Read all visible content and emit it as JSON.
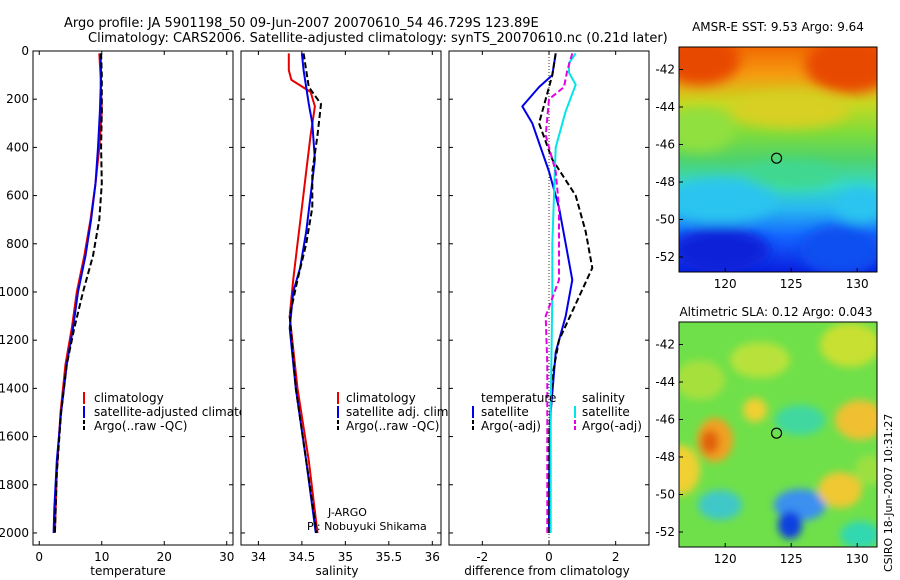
{
  "figure": {
    "title_line1": "Argo profile: JA 5901198_50 09-Jun-2007 20070610_54 46.729S 123.89E",
    "title_line2": "Climatology: CARS2006. Satellite-adjusted climatology: synTS_20070610.nc (0.21d later)",
    "credit": "CSIRO 18-Jun-2007 10:31:27",
    "colors": {
      "red": "#e60000",
      "blue": "#0000e6",
      "black": "#000000",
      "cyan": "#00e6e6",
      "magenta": "#e600e6"
    }
  },
  "chart_data": [
    {
      "id": "temperature",
      "type": "line",
      "xlabel": "temperature",
      "ylabel": "",
      "xlim": [
        -1,
        31
      ],
      "ylim": [
        2050,
        0
      ],
      "x_ticks": [
        0,
        10,
        20,
        30
      ],
      "x_tick_labels": [
        "0",
        "10",
        "20",
        "30"
      ],
      "y_ticks": [
        0,
        200,
        400,
        600,
        800,
        1000,
        1200,
        1400,
        1600,
        1800,
        2000
      ],
      "y_tick_labels": [
        "0",
        "200",
        "400",
        "600",
        "800",
        "1000",
        "1200",
        "1400",
        "1600",
        "1800",
        "2000"
      ],
      "series": [
        {
          "name": "climatology",
          "color": "red",
          "dashed": false,
          "x": [
            9.6,
            9.8,
            10.0,
            9.6,
            9.0,
            8.2,
            7.2,
            6.0,
            5.2,
            4.2,
            3.4,
            2.8,
            2.5
          ],
          "y": [
            10,
            100,
            250,
            400,
            550,
            700,
            850,
            1000,
            1150,
            1300,
            1500,
            1750,
            2000
          ]
        },
        {
          "name": "satellite-adjusted climatology",
          "color": "blue",
          "dashed": false,
          "x": [
            9.8,
            9.9,
            9.7,
            9.4,
            9.0,
            8.3,
            7.4,
            6.2,
            5.4,
            4.4,
            3.5,
            2.8,
            2.4,
            2.3
          ],
          "y": [
            10,
            100,
            250,
            400,
            550,
            700,
            850,
            1000,
            1150,
            1300,
            1500,
            1700,
            1900,
            2000
          ]
        },
        {
          "name": "Argo(..raw -QC)",
          "color": "black",
          "dashed": true,
          "x": [
            9.9,
            10.0,
            10.0,
            9.9,
            10.0,
            9.6,
            8.6,
            7.0,
            5.6,
            4.4,
            3.5,
            2.8,
            2.5
          ],
          "y": [
            10,
            100,
            250,
            400,
            550,
            700,
            850,
            1000,
            1150,
            1300,
            1500,
            1750,
            2000
          ]
        }
      ],
      "legend_position": "lower-center"
    },
    {
      "id": "salinity",
      "type": "line",
      "xlabel": "salinity",
      "ylabel": "",
      "xlim": [
        33.8,
        36.1
      ],
      "ylim": [
        2050,
        0
      ],
      "x_ticks": [
        34,
        34.5,
        35,
        35.5,
        36
      ],
      "x_tick_labels": [
        "34",
        "34.5",
        "35",
        "35.5",
        "36"
      ],
      "series": [
        {
          "name": "climatology",
          "color": "red",
          "dashed": false,
          "x": [
            34.35,
            34.35,
            34.38,
            34.6,
            34.65,
            34.6,
            34.55,
            34.5,
            34.45,
            34.4,
            34.36,
            34.45,
            34.58,
            34.68
          ],
          "y": [
            10,
            80,
            120,
            170,
            230,
            350,
            500,
            650,
            800,
            950,
            1100,
            1400,
            1700,
            2000
          ]
        },
        {
          "name": "satellite adj. clim.",
          "color": "blue",
          "dashed": false,
          "x": [
            34.5,
            34.52,
            34.55,
            34.58,
            34.62,
            34.65,
            34.6,
            34.55,
            34.48,
            34.4,
            34.36,
            34.43,
            34.55,
            34.66
          ],
          "y": [
            10,
            80,
            150,
            220,
            300,
            450,
            600,
            750,
            900,
            1000,
            1150,
            1400,
            1700,
            2000
          ]
        },
        {
          "name": "Argo(..raw -QC)",
          "color": "black",
          "dashed": true,
          "x": [
            34.52,
            34.55,
            34.58,
            34.72,
            34.68,
            34.62,
            34.62,
            34.55,
            34.45,
            34.36,
            34.43,
            34.55,
            34.67
          ],
          "y": [
            10,
            80,
            150,
            220,
            350,
            500,
            650,
            800,
            950,
            1100,
            1400,
            1700,
            2000
          ]
        }
      ],
      "legend_position": "lower-center",
      "annotation_line1": "J-ARGO",
      "annotation_line2": "PI: Nobuyuki Shikama"
    },
    {
      "id": "difference",
      "type": "line",
      "xlabel": "difference from climatology",
      "ylabel": "",
      "xlim": [
        -3.0,
        3.0
      ],
      "ylim": [
        2050,
        0
      ],
      "x_ticks": [
        -2,
        0,
        2
      ],
      "x_tick_labels": [
        "-2",
        "0",
        "2"
      ],
      "zero_line": true,
      "series": [
        {
          "name": "temperature satellite",
          "color": "blue",
          "dashed": false,
          "x": [
            0.2,
            0.1,
            -0.3,
            -0.8,
            -0.5,
            0.0,
            0.3,
            0.5,
            0.7,
            0.5,
            0.2,
            0.05,
            0.0,
            0.0
          ],
          "y": [
            10,
            100,
            150,
            230,
            300,
            500,
            650,
            800,
            950,
            1100,
            1250,
            1500,
            1800,
            2000
          ]
        },
        {
          "name": "temperature Argo(-adj)",
          "color": "black",
          "dashed": true,
          "x": [
            0.2,
            0.1,
            -0.1,
            -0.3,
            0.1,
            0.8,
            1.1,
            1.3,
            0.8,
            0.3,
            0.1,
            0.0,
            0.0
          ],
          "y": [
            10,
            100,
            200,
            300,
            450,
            600,
            750,
            900,
            1050,
            1200,
            1350,
            1600,
            2000
          ]
        },
        {
          "name": "salinity satellite",
          "color": "cyan",
          "dashed": false,
          "x": [
            0.8,
            0.6,
            0.6,
            0.8,
            0.5,
            0.2,
            0.15,
            0.1,
            0.1,
            0.08,
            0.05,
            0.05,
            0.05
          ],
          "y": [
            10,
            50,
            90,
            140,
            250,
            400,
            600,
            800,
            1000,
            1200,
            1500,
            1800,
            2000
          ]
        },
        {
          "name": "salinity Argo(-adj)",
          "color": "magenta",
          "dashed": true,
          "x": [
            0.7,
            0.55,
            0.45,
            0.0,
            -0.1,
            0.2,
            0.3,
            0.3,
            0.3,
            -0.1,
            -0.05,
            -0.05,
            -0.05
          ],
          "y": [
            10,
            80,
            150,
            200,
            350,
            500,
            650,
            800,
            950,
            1100,
            1300,
            1600,
            2000
          ]
        }
      ],
      "legend_position": "lower-center",
      "legend_header_left": "temperature",
      "legend_header_right": "salinity"
    },
    {
      "id": "sst_map",
      "type": "heatmap",
      "title": "AMSR-E SST: 9.53 Argo: 9.64",
      "xlim": [
        116.5,
        131.5
      ],
      "ylim": [
        -52.8,
        -40.8
      ],
      "x_ticks": [
        120,
        125,
        130
      ],
      "x_tick_labels": [
        "120",
        "125",
        "130"
      ],
      "y_ticks": [
        -42,
        -44,
        -46,
        -48,
        -50,
        -52
      ],
      "y_tick_labels": [
        "-42",
        "-44",
        "-46",
        "-48",
        "-50",
        "-52"
      ],
      "marker": {
        "lon": 123.89,
        "lat": -46.729
      }
    },
    {
      "id": "sla_map",
      "type": "heatmap",
      "title": "Altimetric SLA: 0.12 Argo: 0.043",
      "xlim": [
        116.5,
        131.5
      ],
      "ylim": [
        -52.8,
        -40.8
      ],
      "x_ticks": [
        120,
        125,
        130
      ],
      "x_tick_labels": [
        "120",
        "125",
        "130"
      ],
      "y_ticks": [
        -42,
        -44,
        -46,
        -48,
        -50,
        -52
      ],
      "y_tick_labels": [
        "-42",
        "-44",
        "-46",
        "-48",
        "-50",
        "-52"
      ],
      "marker": {
        "lon": 123.89,
        "lat": -46.729
      }
    }
  ]
}
